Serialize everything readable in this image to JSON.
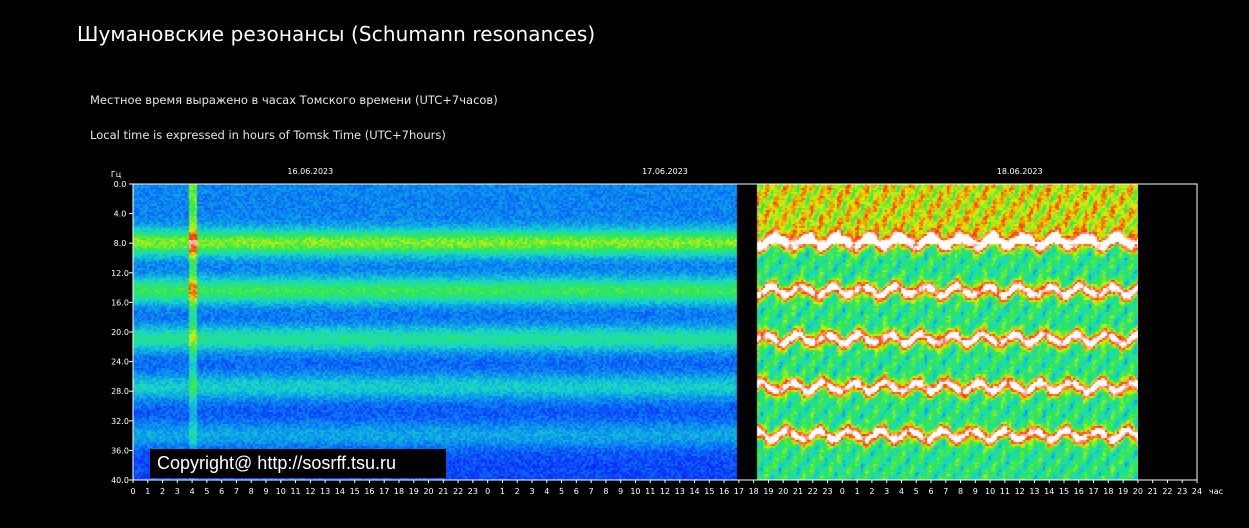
{
  "page": {
    "title": "Шумановские резонансы (Schumann resonances)",
    "note_ru": "Местное время выражено в часах Томского времени (UTC+7часов)",
    "note_en": "Local time is expressed in hours of Tomsk Time (UTC+7hours)",
    "copyright": "Copyright@ http://sosrff.tsu.ru"
  },
  "chart_data": {
    "type": "heatmap",
    "title": "",
    "ylabel": "Гц",
    "xlabel": "час",
    "ylim": [
      0,
      40
    ],
    "y_ticks": [
      "0.0",
      "4.0",
      "8.0",
      "12.0",
      "16.0",
      "20.0",
      "24.0",
      "28.0",
      "32.0",
      "36.0",
      "40.0"
    ],
    "x_tick_labels": [
      "0",
      "1",
      "2",
      "3",
      "4",
      "5",
      "6",
      "7",
      "8",
      "9",
      "10",
      "11",
      "12",
      "13",
      "14",
      "15",
      "16",
      "17",
      "18",
      "19",
      "20",
      "21",
      "22",
      "23",
      "0",
      "1",
      "2",
      "3",
      "4",
      "5",
      "6",
      "7",
      "8",
      "9",
      "10",
      "11",
      "12",
      "13",
      "14",
      "15",
      "16",
      "17",
      "18",
      "19",
      "20",
      "21",
      "22",
      "23",
      "0",
      "1",
      "2",
      "3",
      "4",
      "5",
      "6",
      "7",
      "8",
      "9",
      "10",
      "11",
      "12",
      "13",
      "14",
      "15",
      "16",
      "17",
      "18",
      "19",
      "20",
      "21",
      "22",
      "23",
      "24"
    ],
    "dates": [
      {
        "label": "16.06.2023",
        "x_hour": 12
      },
      {
        "label": "17.06.2023",
        "x_hour": 36
      },
      {
        "label": "18.06.2023",
        "x_hour": 60
      }
    ],
    "x_range_hours": [
      0,
      72
    ],
    "data_end_hour": 68,
    "gap_hours": [
      40.8,
      42.2
    ],
    "resonance_bands_hz": [
      7.8,
      14.3,
      20.8,
      27.3,
      33.8
    ],
    "colormap": [
      "#0000b4",
      "#0a2cff",
      "#0a8cf0",
      "#18d8c8",
      "#30e850",
      "#e0f000",
      "#ff3000",
      "#ffffff"
    ]
  }
}
